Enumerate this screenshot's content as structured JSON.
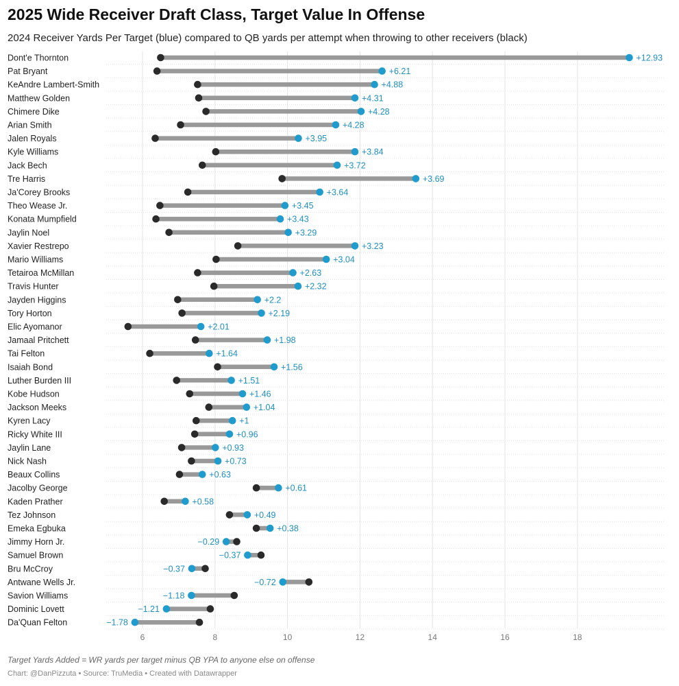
{
  "chart_data": {
    "type": "dumbbell",
    "title": "2025 Wide Receiver Draft Class, Target Value In Offense",
    "subtitle": "2024 Receiver Yards Per Target (blue) compared to QB yards per attempt when throwing to other receivers (black)",
    "xlim": [
      5,
      20.4
    ],
    "xticks": [
      6,
      8,
      10,
      12,
      14,
      16,
      18
    ],
    "colors": {
      "wr": "#1f9bcd",
      "qb": "#2a2a2a",
      "bar": "#999999",
      "grid": "#e3e3e3",
      "label_text": "#1f8fc0"
    },
    "players": [
      {
        "name": "Dont'e Thornton",
        "qb": 6.5,
        "wr": 19.43,
        "diff": "+12.93"
      },
      {
        "name": "Pat Bryant",
        "qb": 6.4,
        "wr": 12.61,
        "diff": "+6.21"
      },
      {
        "name": "KeAndre Lambert-Smith",
        "qb": 7.52,
        "wr": 12.4,
        "diff": "+4.88"
      },
      {
        "name": "Matthew Golden",
        "qb": 7.55,
        "wr": 11.86,
        "diff": "+4.31"
      },
      {
        "name": "Chimere Dike",
        "qb": 7.75,
        "wr": 12.03,
        "diff": "+4.28"
      },
      {
        "name": "Arian Smith",
        "qb": 7.05,
        "wr": 11.33,
        "diff": "+4.28"
      },
      {
        "name": "Jalen Royals",
        "qb": 6.35,
        "wr": 10.3,
        "diff": "+3.95"
      },
      {
        "name": "Kyle Williams",
        "qb": 8.02,
        "wr": 11.86,
        "diff": "+3.84"
      },
      {
        "name": "Jack Bech",
        "qb": 7.65,
        "wr": 11.37,
        "diff": "+3.72"
      },
      {
        "name": "Tre Harris",
        "qb": 9.85,
        "wr": 13.54,
        "diff": "+3.69"
      },
      {
        "name": "Ja'Corey Brooks",
        "qb": 7.25,
        "wr": 10.89,
        "diff": "+3.64"
      },
      {
        "name": "Theo Wease Jr.",
        "qb": 6.48,
        "wr": 9.93,
        "diff": "+3.45"
      },
      {
        "name": "Konata Mumpfield",
        "qb": 6.37,
        "wr": 9.8,
        "diff": "+3.43"
      },
      {
        "name": "Jaylin Noel",
        "qb": 6.73,
        "wr": 10.02,
        "diff": "+3.29"
      },
      {
        "name": "Xavier Restrepo",
        "qb": 8.63,
        "wr": 11.86,
        "diff": "+3.23"
      },
      {
        "name": "Mario Williams",
        "qb": 8.03,
        "wr": 11.07,
        "diff": "+3.04"
      },
      {
        "name": "Tetairoa McMillan",
        "qb": 7.52,
        "wr": 10.15,
        "diff": "+2.63"
      },
      {
        "name": "Travis Hunter",
        "qb": 7.97,
        "wr": 10.29,
        "diff": "+2.32"
      },
      {
        "name": "Jayden Higgins",
        "qb": 6.97,
        "wr": 9.17,
        "diff": "+2.2"
      },
      {
        "name": "Tory Horton",
        "qb": 7.09,
        "wr": 9.28,
        "diff": "+2.19"
      },
      {
        "name": "Elic Ayomanor",
        "qb": 5.6,
        "wr": 7.61,
        "diff": "+2.01"
      },
      {
        "name": "Jamaal Pritchett",
        "qb": 7.46,
        "wr": 9.44,
        "diff": "+1.98"
      },
      {
        "name": "Tai Felton",
        "qb": 6.2,
        "wr": 7.84,
        "diff": "+1.64"
      },
      {
        "name": "Isaiah Bond",
        "qb": 8.07,
        "wr": 9.63,
        "diff": "+1.56"
      },
      {
        "name": "Luther Burden III",
        "qb": 6.94,
        "wr": 8.45,
        "diff": "+1.51"
      },
      {
        "name": "Kobe Hudson",
        "qb": 7.3,
        "wr": 8.76,
        "diff": "+1.46"
      },
      {
        "name": "Jackson Meeks",
        "qb": 7.83,
        "wr": 8.87,
        "diff": "+1.04"
      },
      {
        "name": "Kyren Lacy",
        "qb": 7.48,
        "wr": 8.48,
        "diff": "+1"
      },
      {
        "name": "Ricky White III",
        "qb": 7.44,
        "wr": 8.4,
        "diff": "+0.96"
      },
      {
        "name": "Jaylin Lane",
        "qb": 7.08,
        "wr": 8.01,
        "diff": "+0.93"
      },
      {
        "name": "Nick Nash",
        "qb": 7.35,
        "wr": 8.08,
        "diff": "+0.73"
      },
      {
        "name": "Beaux Collins",
        "qb": 7.02,
        "wr": 7.65,
        "diff": "+0.63"
      },
      {
        "name": "Jacolby George",
        "qb": 9.14,
        "wr": 9.75,
        "diff": "+0.61"
      },
      {
        "name": "Kaden Prather",
        "qb": 6.6,
        "wr": 7.18,
        "diff": "+0.58"
      },
      {
        "name": "Tez Johnson",
        "qb": 8.4,
        "wr": 8.89,
        "diff": "+0.49"
      },
      {
        "name": "Emeka Egbuka",
        "qb": 9.14,
        "wr": 9.52,
        "diff": "+0.38"
      },
      {
        "name": "Jimmy Horn Jr.",
        "qb": 8.6,
        "wr": 8.31,
        "diff": "−0.29"
      },
      {
        "name": "Samuel Brown",
        "qb": 9.27,
        "wr": 8.9,
        "diff": "−0.37"
      },
      {
        "name": "Bru McCroy",
        "qb": 7.73,
        "wr": 7.36,
        "diff": "−0.37"
      },
      {
        "name": "Antwane Wells Jr.",
        "qb": 10.59,
        "wr": 9.87,
        "diff": "−0.72"
      },
      {
        "name": "Savion Williams",
        "qb": 8.53,
        "wr": 7.35,
        "diff": "−1.18"
      },
      {
        "name": "Dominic Lovett",
        "qb": 7.87,
        "wr": 6.66,
        "diff": "−1.21"
      },
      {
        "name": "Da'Quan Felton",
        "qb": 7.57,
        "wr": 5.79,
        "diff": "−1.78"
      }
    ]
  },
  "footer": {
    "note": "Target Yards Added = WR yards per target minus QB YPA to anyone else on offense",
    "credit": "Chart: @DanPizzuta • Source: TruMedia • Created with Datawrapper"
  }
}
